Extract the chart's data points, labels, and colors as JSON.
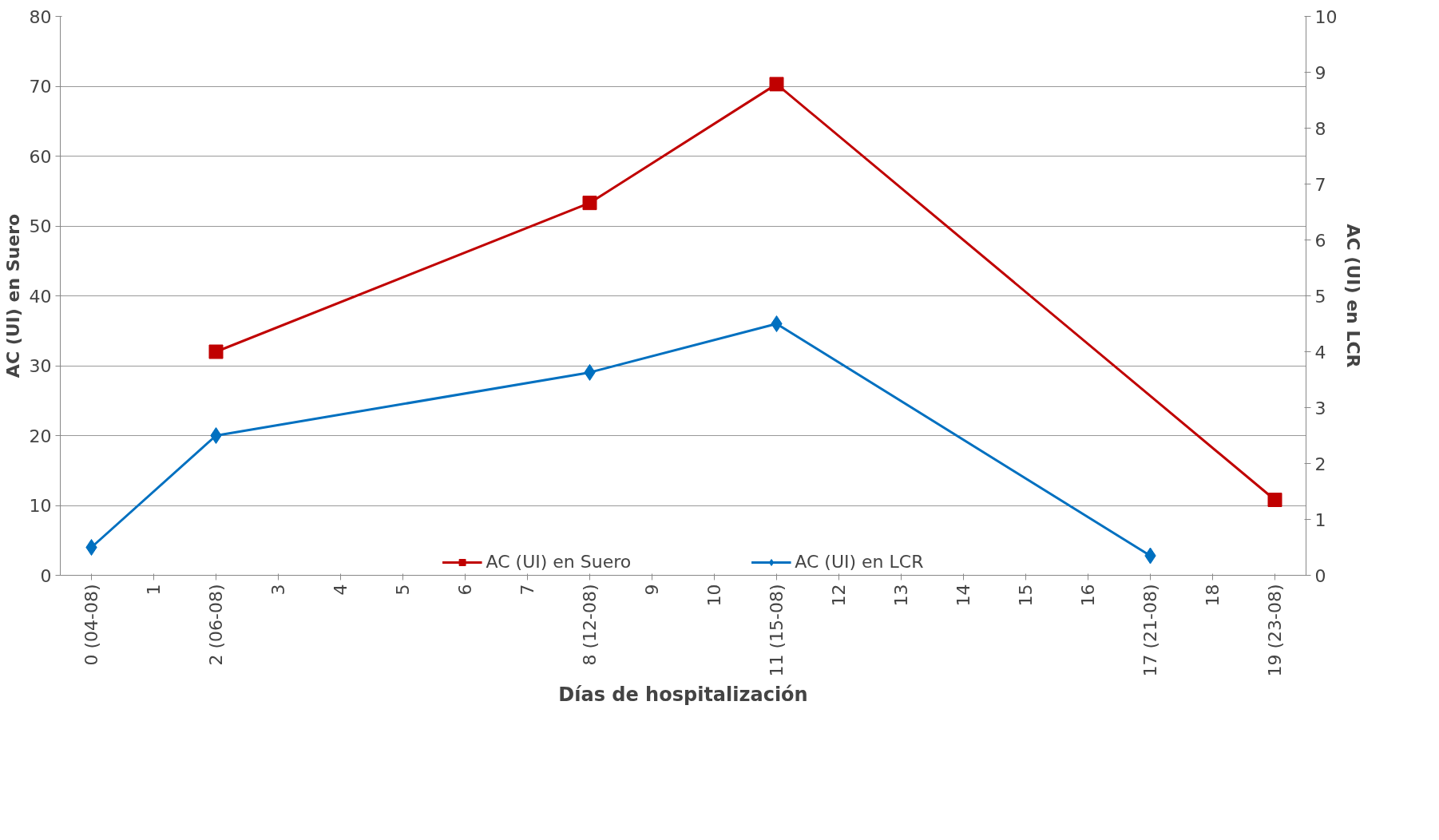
{
  "chart_data": {
    "type": "line",
    "xlabel": "Días de hospitalización",
    "ylabel": "AC (UI) en Suero",
    "y2label": "AC (UI) en LCR",
    "categories": [
      "0 (04-08)",
      "1",
      "2 (06-08)",
      "3",
      "4",
      "5",
      "6",
      "7",
      "8 (12-08)",
      "9",
      "10",
      "11 (15-08)",
      "12",
      "13",
      "14",
      "15",
      "16",
      "17 (21-08)",
      "18",
      "19 (23-08)"
    ],
    "series": [
      {
        "name": "AC (UI) en Suero",
        "color": "#c00000",
        "marker": "square",
        "values": [
          null,
          null,
          32,
          null,
          null,
          null,
          null,
          null,
          53.3,
          null,
          null,
          70.3,
          null,
          null,
          null,
          null,
          null,
          null,
          null,
          10.8
        ]
      },
      {
        "name": "AC (UI) en LCR",
        "color": "#0070c0",
        "marker": "diamond",
        "axis": "y2",
        "values": [
          0.5,
          null,
          2.5,
          null,
          null,
          null,
          null,
          null,
          3.63,
          null,
          null,
          4.5,
          null,
          null,
          null,
          null,
          null,
          0.35,
          null,
          null
        ]
      }
    ],
    "ylim": [
      0,
      80
    ],
    "yticks": [
      0,
      10,
      20,
      30,
      40,
      50,
      60,
      70,
      80
    ],
    "y2lim": [
      0,
      10
    ],
    "y2ticks": [
      0,
      1,
      2,
      3,
      4,
      5,
      6,
      7,
      8,
      9,
      10
    ],
    "grid": "y",
    "legend": "bottom",
    "line_style": "solid"
  }
}
